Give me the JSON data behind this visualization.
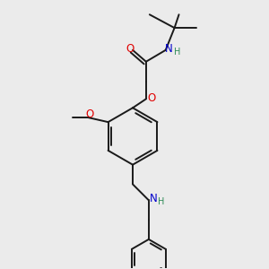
{
  "bg_color": "#ebebeb",
  "bond_color": "#1a1a1a",
  "bond_width": 1.4,
  "atom_colors": {
    "O": "#e00000",
    "N": "#0000cc",
    "H_on_N": "#2e8b57",
    "C": "#1a1a1a"
  },
  "font_size_atom": 8.5,
  "font_size_H": 7.0
}
